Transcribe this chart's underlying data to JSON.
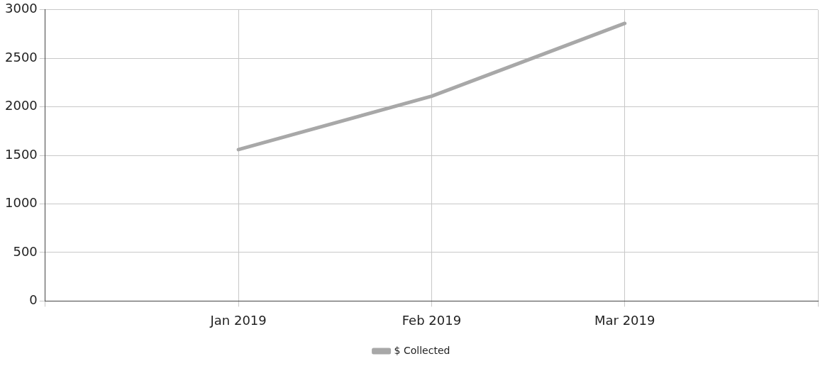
{
  "chart_data": {
    "type": "line",
    "categories": [
      null,
      "Jan 2019",
      "Feb 2019",
      "Mar 2019",
      null
    ],
    "series": [
      {
        "name": "$ Collected",
        "color": "#a8a8a8",
        "values": [
          null,
          1560,
          2110,
          2860,
          null
        ]
      }
    ],
    "ylim": [
      0,
      3000
    ],
    "yticks": [
      0,
      500,
      1000,
      1500,
      2000,
      2500,
      3000
    ],
    "grid": true,
    "legend": "bottom",
    "marker": "none",
    "line_style": "solid"
  }
}
